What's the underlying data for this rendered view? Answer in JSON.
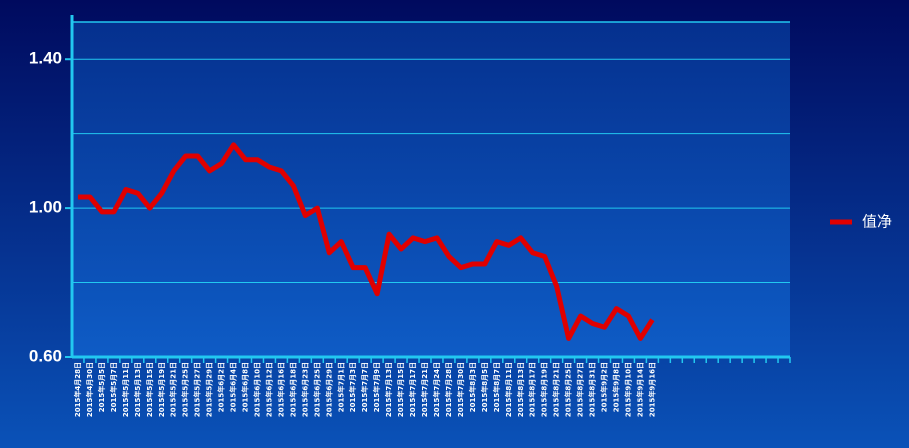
{
  "chart_data": {
    "type": "line",
    "categories": [
      "2015年4月28日",
      "2015年4月30日",
      "2015年5月5日",
      "2015年5月7日",
      "2015年5月11日",
      "2015年5月13日",
      "2015年5月15日",
      "2015年5月19日",
      "2015年5月21日",
      "2015年5月25日",
      "2015年5月27日",
      "2015年5月29日",
      "2015年6月2日",
      "2015年6月4日",
      "2015年6月8日",
      "2015年6月10日",
      "2015年6月12日",
      "2015年6月16日",
      "2015年6月18日",
      "2015年6月23日",
      "2015年6月25日",
      "2015年6月29日",
      "2015年7月1日",
      "2015年7月3日",
      "2015年7月7日",
      "2015年7月9日",
      "2015年7月13日",
      "2015年7月15日",
      "2015年7月17日",
      "2015年7月21日",
      "2015年7月24日",
      "2015年7月28日",
      "2015年7月30日",
      "2015年8月3日",
      "2015年8月5日",
      "2015年8月7日",
      "2015年8月11日",
      "2015年8月13日",
      "2015年8月17日",
      "2015年8月19日",
      "2015年8月21日",
      "2015年8月25日",
      "2015年8月27日",
      "2015年8月31日",
      "2015年9月2日",
      "2015年9月8日",
      "2015年9月10日",
      "2015年9月14日",
      "2015年9月16日",
      null,
      null,
      null,
      null,
      null,
      null,
      null,
      null,
      null,
      null,
      null
    ],
    "series": [
      {
        "name": "值净",
        "color": "#e00000",
        "values": [
          1.03,
          1.03,
          0.99,
          0.99,
          1.05,
          1.04,
          1.0,
          1.04,
          1.1,
          1.14,
          1.14,
          1.1,
          1.12,
          1.17,
          1.13,
          1.13,
          1.11,
          1.1,
          1.06,
          0.98,
          1.0,
          0.88,
          0.91,
          0.84,
          0.84,
          0.77,
          0.93,
          0.89,
          0.92,
          0.91,
          0.92,
          0.87,
          0.84,
          0.85,
          0.85,
          0.91,
          0.9,
          0.92,
          0.88,
          0.87,
          0.79,
          0.65,
          0.71,
          0.69,
          0.68,
          0.73,
          0.71,
          0.65,
          0.7,
          null,
          null,
          null,
          null,
          null,
          null,
          null,
          null,
          null,
          null,
          null
        ]
      }
    ],
    "ylim": [
      0.6,
      1.5
    ],
    "yticks": [
      {
        "value": 0.6,
        "label": "0.60"
      },
      {
        "value": 1.0,
        "label": "1.00"
      },
      {
        "value": 1.4,
        "label": "1.40"
      }
    ],
    "yminor": [
      0.8,
      1.2
    ],
    "grid": true,
    "legend": "right"
  }
}
